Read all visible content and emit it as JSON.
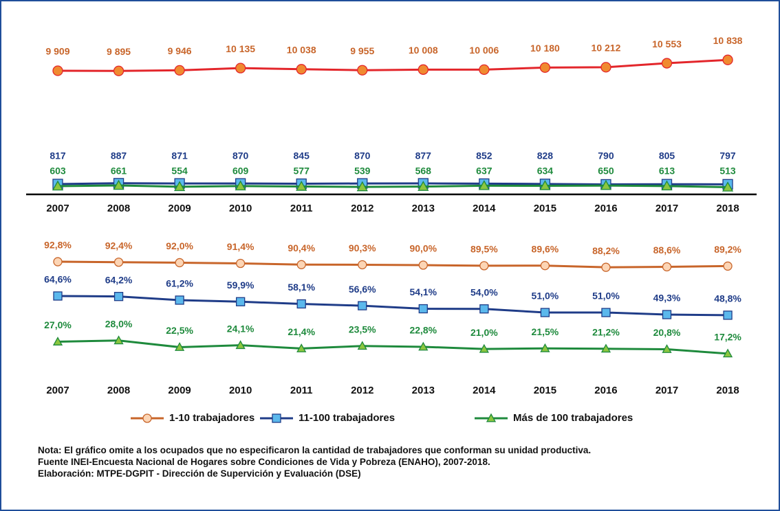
{
  "chart_data": [
    {
      "type": "line",
      "categories": [
        "2007",
        "2008",
        "2009",
        "2010",
        "2011",
        "2012",
        "2013",
        "2014",
        "2015",
        "2016",
        "2017",
        "2018"
      ],
      "series": [
        {
          "color": "#e3262b",
          "marker_color": "#f08a30",
          "label_color": "#c8652a",
          "values": [
            9909,
            9895,
            9946,
            10135,
            10038,
            9955,
            10008,
            10006,
            10180,
            10212,
            10553,
            10838
          ],
          "value_labels": [
            "9 909",
            "9 895",
            "9 946",
            "10 135",
            "10 038",
            "9 955",
            "10 008",
            "10 006",
            "10 180",
            "10 212",
            "10 553",
            "10 838"
          ]
        },
        {
          "color": "#1f3c88",
          "marker_color": "#5bb8ec",
          "values": [
            817,
            887,
            871,
            870,
            845,
            870,
            877,
            852,
            828,
            790,
            805,
            797
          ]
        },
        {
          "color": "#1e8a3c",
          "marker_color": "#8cc63f",
          "values": [
            603,
            661,
            554,
            609,
            577,
            539,
            568,
            637,
            634,
            650,
            613,
            513
          ]
        }
      ]
    },
    {
      "type": "line",
      "categories": [
        "2007",
        "2008",
        "2009",
        "2010",
        "2011",
        "2012",
        "2013",
        "2014",
        "2015",
        "2016",
        "2017",
        "2018"
      ],
      "series": [
        {
          "name": "1-10 trabajadores",
          "color": "#c8652a",
          "marker_color": "#fcd5b5",
          "values": [
            92.8,
            92.4,
            92.0,
            91.4,
            90.4,
            90.3,
            90.0,
            89.5,
            89.6,
            88.2,
            88.6,
            89.2
          ],
          "value_labels": [
            "92,8%",
            "92,4%",
            "92,0%",
            "91,4%",
            "90,4%",
            "90,3%",
            "90,0%",
            "89,5%",
            "89,6%",
            "88,2%",
            "88,6%",
            "89,2%"
          ]
        },
        {
          "name": "11-100 trabajadores",
          "color": "#1f3c88",
          "marker_color": "#5bb8ec",
          "values": [
            64.6,
            64.2,
            61.2,
            59.9,
            58.1,
            56.6,
            54.1,
            54.0,
            51.0,
            51.0,
            49.3,
            48.8
          ],
          "value_labels": [
            "64,6%",
            "64,2%",
            "61,2%",
            "59,9%",
            "58,1%",
            "56,6%",
            "54,1%",
            "54,0%",
            "51,0%",
            "51,0%",
            "49,3%",
            "48,8%"
          ]
        },
        {
          "name": "Más de 100 trabajadores",
          "color": "#1e8a3c",
          "marker_color": "#8cc63f",
          "values": [
            27.0,
            28.0,
            22.5,
            24.1,
            21.4,
            23.5,
            22.8,
            21.0,
            21.5,
            21.2,
            20.8,
            17.2
          ],
          "value_labels": [
            "27,0%",
            "28,0%",
            "22,5%",
            "24,1%",
            "21,4%",
            "23,5%",
            "22,8%",
            "21,0%",
            "21,5%",
            "21,2%",
            "20,8%",
            "17,2%"
          ]
        }
      ]
    }
  ],
  "notes": [
    "Nota: El gráfico omite a los ocupados que no especificaron la cantidad de trabajadores que conforman su unidad productiva.",
    "Fuente INEI-Encuesta Nacional de Hogares sobre Condiciones de Vida y Pobreza (ENAHO), 2007-2018.",
    "Elaboración: MTPE-DGPIT - Dirección de Supervición y Evaluación (DSE)"
  ]
}
